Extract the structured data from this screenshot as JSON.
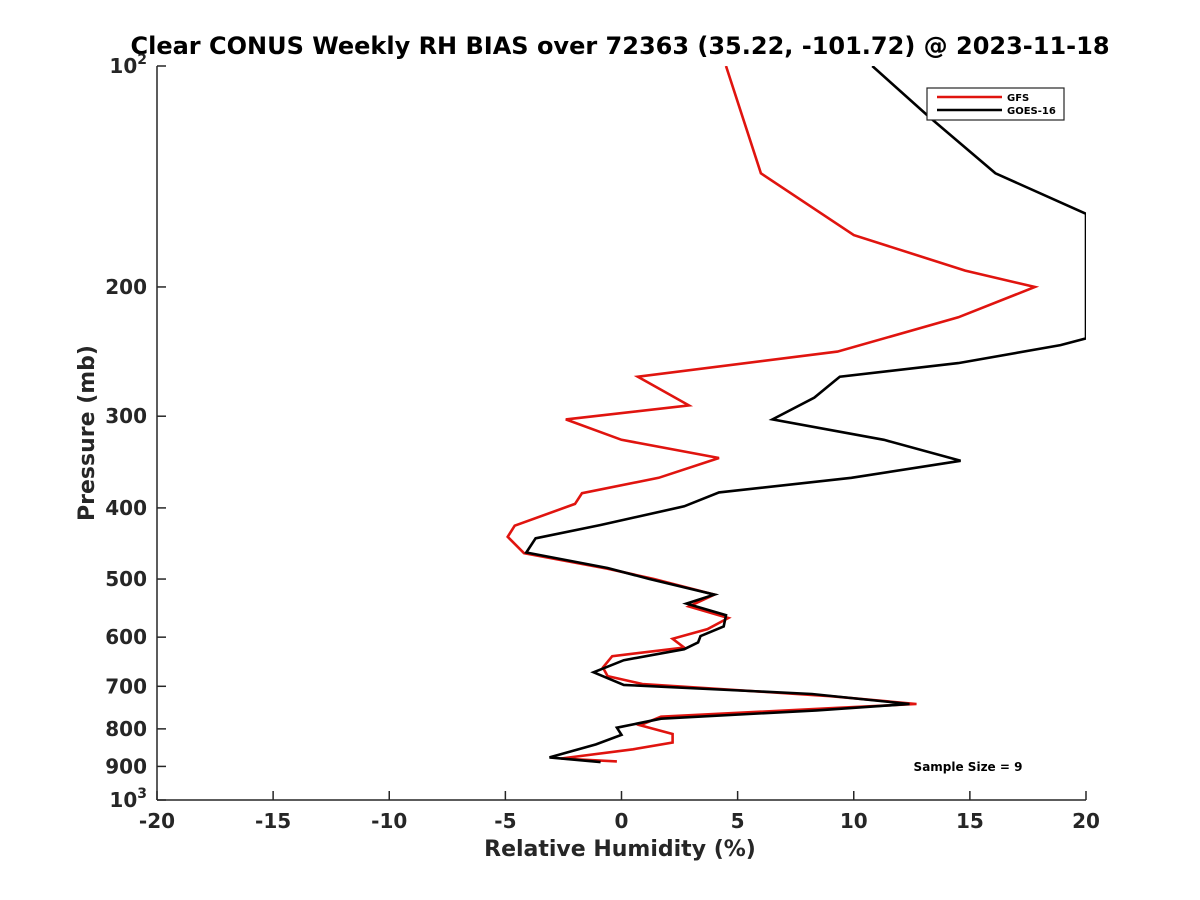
{
  "chart_data": {
    "type": "line",
    "title": "Clear CONUS Weekly RH BIAS over 72363 (35.22, -101.72) @ 2023-11-18",
    "xlabel": "Relative Humidity (%)",
    "ylabel": "Pressure (mb)",
    "xlim": [
      -20,
      20
    ],
    "ylim": [
      100,
      1000
    ],
    "y_scale": "log",
    "y_reversed": true,
    "grid": false,
    "legend_position": "top-right",
    "x_ticks": [
      -20,
      -15,
      -10,
      -5,
      0,
      5,
      10,
      15,
      20
    ],
    "x_tick_labels": [
      "-20",
      "-15",
      "-10",
      "-5",
      "0",
      "5",
      "10",
      "15",
      "20"
    ],
    "y_ticks": [
      100,
      200,
      300,
      400,
      500,
      600,
      700,
      800,
      900,
      1000
    ],
    "y_tick_labels": [
      {
        "base": "10",
        "exp": "2"
      },
      {
        "base": "200"
      },
      {
        "base": "300"
      },
      {
        "base": "400"
      },
      {
        "base": "500"
      },
      {
        "base": "600"
      },
      {
        "base": "700"
      },
      {
        "base": "800"
      },
      {
        "base": "900"
      },
      {
        "base": "10",
        "exp": "3"
      }
    ],
    "annotation": "Sample Size = 9",
    "series": [
      {
        "name": "GFS",
        "color": "#e0140f",
        "points": [
          [
            4.5,
            100
          ],
          [
            6.0,
            140
          ],
          [
            10.0,
            170
          ],
          [
            14.8,
            190
          ],
          [
            17.8,
            200
          ],
          [
            14.5,
            220
          ],
          [
            9.3,
            245
          ],
          [
            0.7,
            265
          ],
          [
            2.9,
            290
          ],
          [
            -2.4,
            303
          ],
          [
            0.0,
            323
          ],
          [
            4.2,
            342
          ],
          [
            1.6,
            364
          ],
          [
            -1.7,
            382
          ],
          [
            -2.0,
            395
          ],
          [
            -4.6,
            423
          ],
          [
            -4.9,
            438
          ],
          [
            -4.2,
            461
          ],
          [
            -0.6,
            484
          ],
          [
            1.4,
            500
          ],
          [
            4.0,
            525
          ],
          [
            2.9,
            545
          ],
          [
            4.6,
            565
          ],
          [
            3.7,
            585
          ],
          [
            2.2,
            603
          ],
          [
            2.7,
            620
          ],
          [
            -0.4,
            637
          ],
          [
            -0.8,
            660
          ],
          [
            -0.6,
            678
          ],
          [
            0.9,
            695
          ],
          [
            9.0,
            722
          ],
          [
            12.7,
            740
          ],
          [
            8.9,
            750
          ],
          [
            1.7,
            770
          ],
          [
            0.8,
            791
          ],
          [
            2.2,
            813
          ],
          [
            2.2,
            835
          ],
          [
            0.5,
            853
          ],
          [
            -2.6,
            878
          ],
          [
            -0.2,
            886
          ]
        ]
      },
      {
        "name": "GOES-16",
        "color": "#000000",
        "points": [
          [
            10.8,
            100
          ],
          [
            13.2,
            117
          ],
          [
            16.1,
            140
          ],
          [
            20.0,
            159
          ],
          [
            20.0,
            160
          ],
          [
            20.0,
            235
          ],
          [
            18.9,
            240
          ],
          [
            14.5,
            254
          ],
          [
            9.4,
            265
          ],
          [
            8.3,
            283
          ],
          [
            6.5,
            303
          ],
          [
            11.3,
            323
          ],
          [
            14.6,
            345
          ],
          [
            9.9,
            364
          ],
          [
            4.2,
            381
          ],
          [
            2.7,
            398
          ],
          [
            -0.9,
            422
          ],
          [
            -3.7,
            440
          ],
          [
            -4.1,
            460
          ],
          [
            -0.6,
            483
          ],
          [
            1.2,
            500
          ],
          [
            4.0,
            525
          ],
          [
            2.8,
            540
          ],
          [
            4.5,
            560
          ],
          [
            4.4,
            580
          ],
          [
            3.4,
            598
          ],
          [
            3.3,
            610
          ],
          [
            2.7,
            623
          ],
          [
            0.1,
            645
          ],
          [
            -1.2,
            670
          ],
          [
            0.1,
            697
          ],
          [
            8.2,
            717
          ],
          [
            12.4,
            740
          ],
          [
            8.4,
            755
          ],
          [
            1.7,
            775
          ],
          [
            -0.2,
            797
          ],
          [
            0.0,
            815
          ],
          [
            -1.1,
            840
          ],
          [
            -3.1,
            875
          ],
          [
            -0.9,
            888
          ]
        ]
      }
    ]
  }
}
